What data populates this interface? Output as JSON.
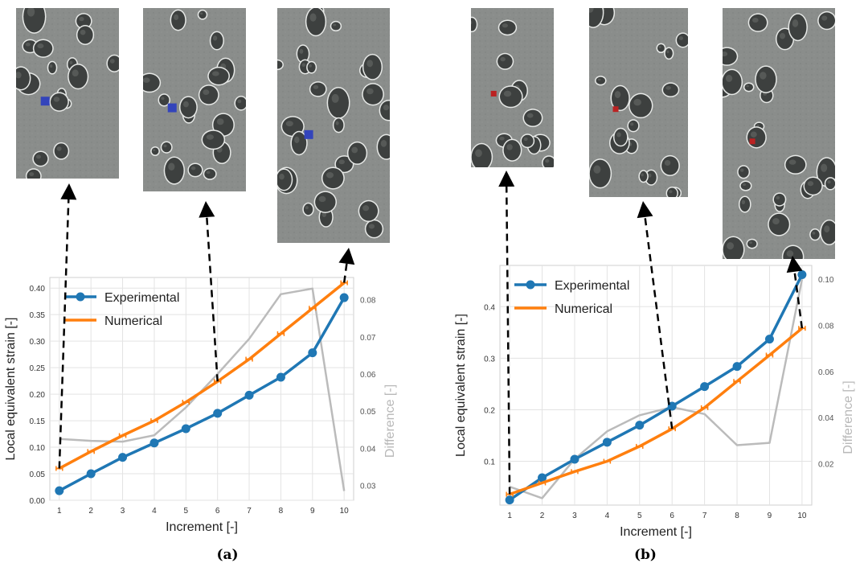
{
  "panels": [
    {
      "caption": "(a)",
      "marker_color": "#3344bb",
      "chart_data": {
        "type": "line",
        "x": [
          1,
          2,
          3,
          4,
          5,
          6,
          7,
          8,
          9,
          10
        ],
        "xticks": [
          "1",
          "2",
          "3",
          "4",
          "5",
          "6",
          "7",
          "8",
          "9",
          "10"
        ],
        "xlabel": "Increment [-]",
        "ylabel": "Local equivalent strain [-]",
        "ylabel_right": "Difference [-]",
        "ylim": [
          0,
          0.42
        ],
        "yticks": [
          "0.00",
          "0.05",
          "0.10",
          "0.15",
          "0.20",
          "0.25",
          "0.30",
          "0.35",
          "0.40"
        ],
        "ylim_right": [
          0.026,
          0.086
        ],
        "yticks_right": [
          "0.03",
          "0.04",
          "0.05",
          "0.06",
          "0.07",
          "0.08"
        ],
        "grid": true,
        "legend_position": "top-left",
        "series": [
          {
            "name": "Experimental",
            "color": "#1f77b4",
            "marker": "circle",
            "axis": "left",
            "values": [
              0.018,
              0.05,
              0.081,
              0.108,
              0.135,
              0.164,
              0.198,
              0.232,
              0.278,
              0.382
            ]
          },
          {
            "name": "Numerical",
            "color": "#ff7f0e",
            "marker": "tick",
            "axis": "left",
            "values": [
              0.06,
              0.092,
              0.122,
              0.15,
              0.185,
              0.224,
              0.266,
              0.314,
              0.362,
              0.41
            ]
          },
          {
            "name": "",
            "color": "#bbbbbb",
            "marker": "none",
            "axis": "right",
            "values": [
              0.0425,
              0.042,
              0.0418,
              0.0435,
              0.051,
              0.06,
              0.0695,
              0.0815,
              0.083,
              0.0285
            ]
          }
        ]
      }
    },
    {
      "caption": "(b)",
      "marker_color": "#bb2222",
      "chart_data": {
        "type": "line",
        "x": [
          1,
          2,
          3,
          4,
          5,
          6,
          7,
          8,
          9,
          10
        ],
        "xticks": [
          "1",
          "2",
          "3",
          "4",
          "5",
          "6",
          "7",
          "8",
          "9",
          "10"
        ],
        "xlabel": "Increment [-]",
        "ylabel": "Local equivalent strain [-]",
        "ylabel_right": "Difference [-]",
        "ylim": [
          0.015,
          0.48
        ],
        "yticks": [
          "0.1",
          "0.2",
          "0.3",
          "0.4"
        ],
        "ylim_right": [
          0.002,
          0.106
        ],
        "yticks_right": [
          "0.02",
          "0.04",
          "0.06",
          "0.08",
          "0.10"
        ],
        "grid": true,
        "legend_position": "top-left",
        "series": [
          {
            "name": "Experimental",
            "color": "#1f77b4",
            "marker": "circle",
            "axis": "left",
            "values": [
              0.025,
              0.068,
              0.104,
              0.137,
              0.17,
              0.207,
              0.245,
              0.284,
              0.337,
              0.462
            ]
          },
          {
            "name": "Numerical",
            "color": "#ff7f0e",
            "marker": "tick",
            "axis": "left",
            "values": [
              0.036,
              0.058,
              0.08,
              0.1,
              0.129,
              0.163,
              0.204,
              0.255,
              0.306,
              0.358
            ]
          },
          {
            "name": "",
            "color": "#bbbbbb",
            "marker": "none",
            "axis": "right",
            "values": [
              0.01,
              0.005,
              0.022,
              0.034,
              0.041,
              0.0445,
              0.0415,
              0.028,
              0.029,
              0.1
            ]
          }
        ]
      }
    }
  ]
}
